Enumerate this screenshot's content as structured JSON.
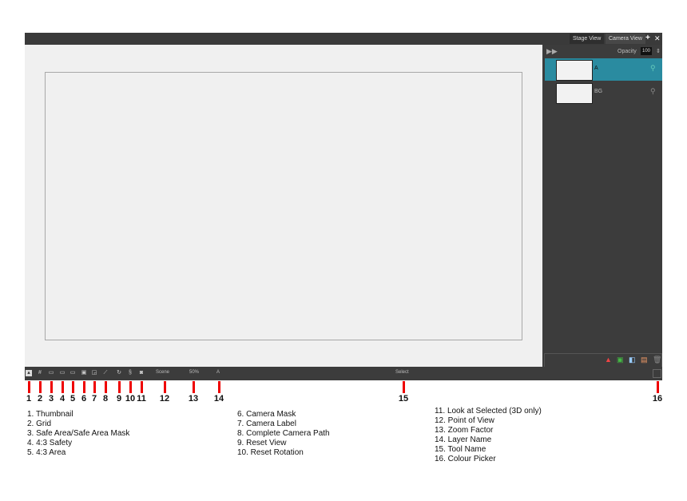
{
  "tabs": [
    "Stage View",
    "Camera View"
  ],
  "panel": {
    "opacity_label": "Opacity",
    "opacity_value": "100",
    "layers": [
      {
        "name": "A",
        "selected": true
      },
      {
        "name": "BG",
        "selected": false
      }
    ]
  },
  "toolbar": {
    "view": "Scene",
    "zoom": "50%",
    "layer": "A",
    "tool": "Select"
  },
  "markers": [
    "1",
    "2",
    "3",
    "4",
    "5",
    "6",
    "7",
    "8",
    "9",
    "10",
    "11",
    "12",
    "13",
    "14",
    "15",
    "16"
  ],
  "legend": [
    [
      "1.  Thumbnail",
      "2.  Grid",
      "3.  Safe Area/Safe Area Mask",
      "4.  4:3 Safety",
      "5.  4:3 Area"
    ],
    [
      "6.  Camera Mask",
      "7.  Camera Label",
      "8.  Complete Camera Path",
      "9.  Reset View",
      "10.  Reset Rotation"
    ],
    [
      "11.  Look at Selected (3D only)",
      "12.  Point of View",
      "13.  Zoom Factor",
      "14.  Layer Name",
      "15.  Tool Name",
      "16.  Colour Picker"
    ]
  ],
  "colors": {
    "selected_layer": "#2a8ba0",
    "marker": "#e00000"
  }
}
